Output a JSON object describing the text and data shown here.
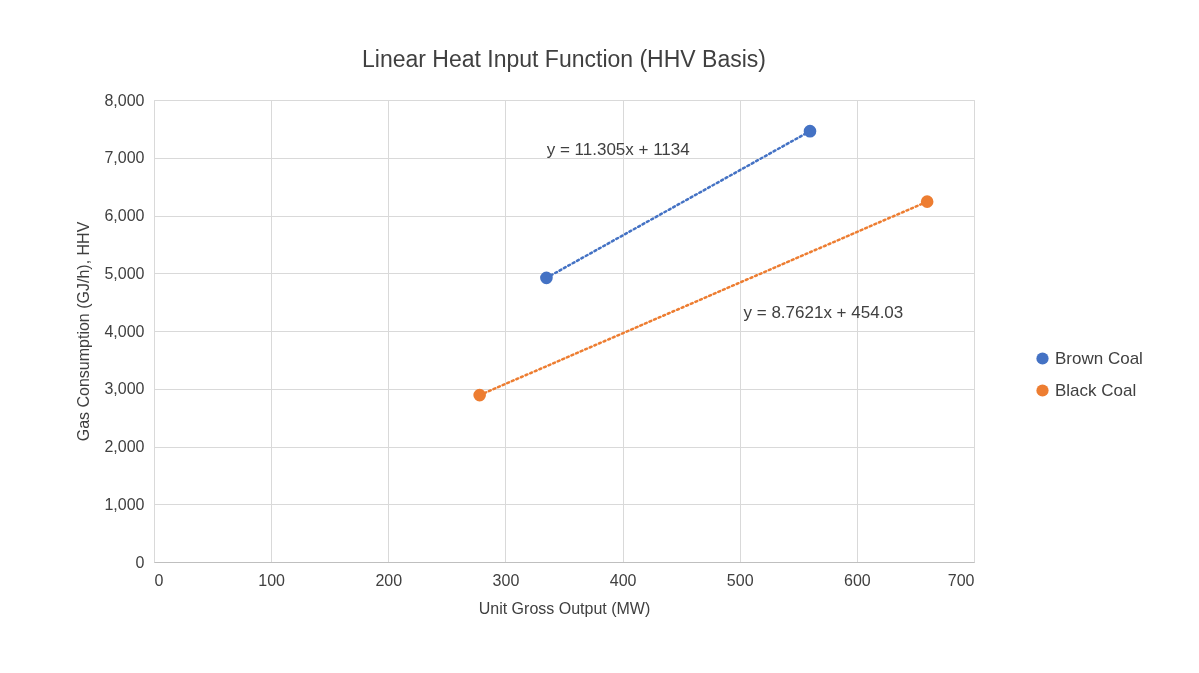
{
  "chart_data": {
    "type": "scatter",
    "title": "Linear Heat Input Function (HHV Basis)",
    "xlabel": "Unit Gross Output (MW)",
    "ylabel": "Gas Consumption (GJ/h), HHV",
    "xlim": [
      0,
      700
    ],
    "xticks": [
      0,
      100,
      200,
      300,
      400,
      500,
      600,
      700
    ],
    "ylim": [
      0,
      8000
    ],
    "yticks": [
      {
        "value": 0,
        "label": "0"
      },
      {
        "value": 1000,
        "label": "1,000"
      },
      {
        "value": 2000,
        "label": "2,000"
      },
      {
        "value": 3000,
        "label": "3,000"
      },
      {
        "value": 4000,
        "label": "4,000"
      },
      {
        "value": 5000,
        "label": "5,000"
      },
      {
        "value": 6000,
        "label": "6,000"
      },
      {
        "value": 7000,
        "label": "7,000"
      },
      {
        "value": 8000,
        "label": "8,000"
      }
    ],
    "grid": true,
    "legend": "right",
    "marker": "circle",
    "series": [
      {
        "name": "Brown Coal",
        "color": "#4472c4",
        "x": [
          335,
          560
        ],
        "values": [
          4920,
          7460
        ]
      },
      {
        "name": "Black Coal",
        "color": "#ed7d31",
        "x": [
          278,
          660
        ],
        "values": [
          2890,
          6240
        ]
      },
      {
        "type": "line",
        "color": "#4472c4",
        "line_style": "dotted",
        "marker": "none",
        "x": [
          335,
          560
        ],
        "values": [
          4920,
          7460
        ]
      },
      {
        "type": "line",
        "color": "#ed7d31",
        "line_style": "dotted",
        "marker": "none",
        "x": [
          278,
          660
        ],
        "values": [
          2890,
          6240
        ]
      }
    ],
    "annotations": [
      "y = 11.305x + 1134",
      "y = 8.7621x + 454.03"
    ]
  }
}
